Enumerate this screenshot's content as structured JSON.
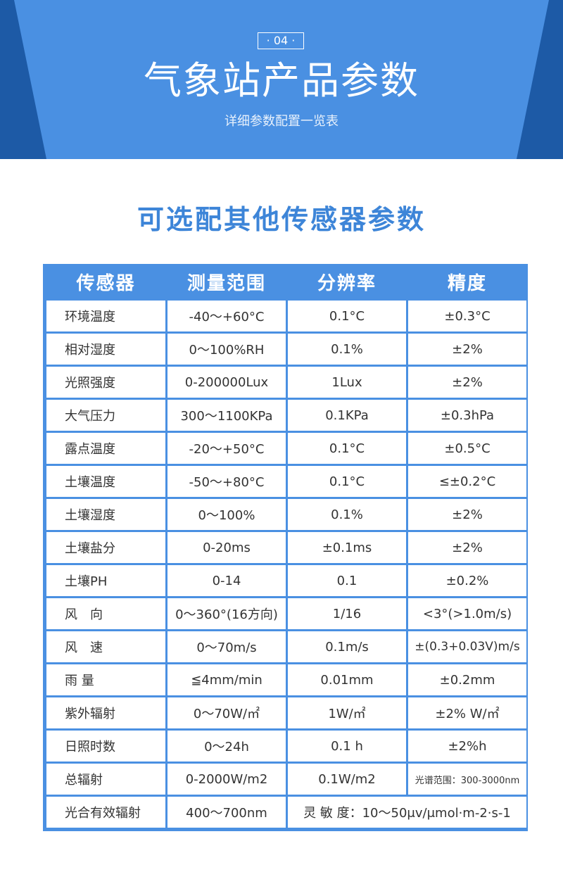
{
  "banner": {
    "badge": "· 04 ·",
    "title": "气象站产品参数",
    "subtitle": "详细参数配置一览表",
    "colors": {
      "background": "#4a90e2",
      "side_dark": "#1d5aa6"
    }
  },
  "section_title": "可选配其他传感器参数",
  "table": {
    "headers": [
      "传感器",
      "测量范围",
      "分辨率",
      "精度"
    ],
    "rows": [
      [
        "环境温度",
        "-40～+60°C",
        "0.1°C",
        "±0.3°C"
      ],
      [
        "相对湿度",
        "0～100%RH",
        "0.1%",
        "±2%"
      ],
      [
        "光照强度",
        "0-200000Lux",
        "1Lux",
        "±2%"
      ],
      [
        "大气压力",
        "300～1100KPa",
        "0.1KPa",
        "±0.3hPa"
      ],
      [
        "露点温度",
        "-20～+50°C",
        "0.1°C",
        "±0.5°C"
      ],
      [
        "土壤温度",
        "-50～+80°C",
        "0.1°C",
        "≤±0.2°C"
      ],
      [
        "土壤湿度",
        "0～100%",
        "0.1%",
        "±2%"
      ],
      [
        "土壤盐分",
        "0-20ms",
        "±0.1ms",
        "±2%"
      ],
      [
        "土壤PH",
        "0-14",
        "0.1",
        "±0.2%"
      ],
      [
        "风　向",
        "0～360°(16方向)",
        "1/16",
        "<3°(>1.0m/s)"
      ],
      [
        "风　速",
        "0～70m/s",
        "0.1m/s",
        "±(0.3+0.03V)m/s"
      ],
      [
        "雨 量",
        "≦4mm/min",
        "0.01mm",
        "±0.2mm"
      ],
      [
        "紫外辐射",
        "0～70W/㎡",
        "1W/㎡",
        "±2% W/㎡"
      ],
      [
        "日照时数",
        "0～24h",
        "0.1 h",
        "±2%h"
      ],
      [
        "总辐射",
        "0-2000W/m2",
        "0.1W/m2",
        "光谱范围：300-3000nm"
      ]
    ],
    "last_row": {
      "name": "光合有效辐射",
      "range": "400～700nm",
      "merged": "灵 敏 度：10～50μv/μmol·m-2·s-1"
    }
  }
}
